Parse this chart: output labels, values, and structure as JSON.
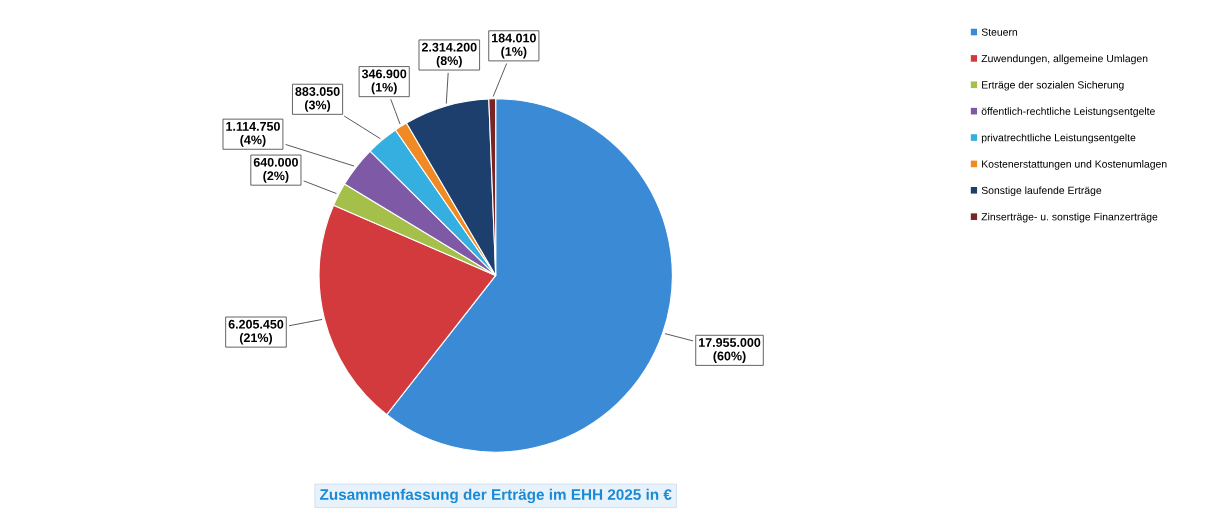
{
  "chart_data": {
    "type": "pie",
    "title": "Zusammenfassung der Erträge im EHH 2025 in €",
    "categories": [
      "Steuern",
      "Zuwendungen, allgemeine Umlagen",
      "Erträge der sozialen Sicherung",
      "öffentlich-rechtliche Leistungsentgelte",
      "privatrechtliche Leistungsentgelte",
      "Kostenerstattungen und Kostenumlagen",
      "Sonstige laufende Erträge",
      "Zinserträge- u. sonstige Finanzerträge"
    ],
    "values": [
      17955000,
      6205450,
      640000,
      1114750,
      883050,
      346900,
      2314200,
      184010
    ],
    "colors": [
      "#3a8ad6",
      "#d23a3e",
      "#a4c04a",
      "#7e5aa6",
      "#35aee0",
      "#f08a24",
      "#1d3f6e",
      "#7a2424"
    ],
    "value_labels": [
      "17.955.000\n(60%)",
      "6.205.450\n(21%)",
      "640.000\n(2%)",
      "1.114.750\n(4%)",
      "883.050\n(3%)",
      "346.900\n(1%)",
      "2.314.200\n(8%)",
      "184.010\n(1%)"
    ],
    "legend": "right"
  }
}
